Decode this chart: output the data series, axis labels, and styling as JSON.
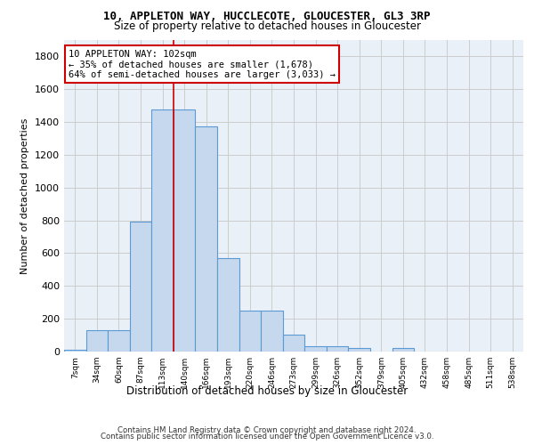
{
  "title1": "10, APPLETON WAY, HUCCLECOTE, GLOUCESTER, GL3 3RP",
  "title2": "Size of property relative to detached houses in Gloucester",
  "xlabel": "Distribution of detached houses by size in Gloucester",
  "ylabel": "Number of detached properties",
  "bar_labels": [
    "7sqm",
    "34sqm",
    "60sqm",
    "87sqm",
    "113sqm",
    "140sqm",
    "166sqm",
    "193sqm",
    "220sqm",
    "246sqm",
    "273sqm",
    "299sqm",
    "326sqm",
    "352sqm",
    "379sqm",
    "405sqm",
    "432sqm",
    "458sqm",
    "485sqm",
    "511sqm",
    "538sqm"
  ],
  "bar_values": [
    10,
    130,
    130,
    790,
    1475,
    1475,
    1375,
    570,
    250,
    250,
    105,
    35,
    30,
    20,
    0,
    20,
    0,
    0,
    0,
    0,
    0
  ],
  "bar_color": "#c5d8ed",
  "bar_edge_color": "#5b9bd5",
  "annotation_line1": "10 APPLETON WAY: 102sqm",
  "annotation_line2": "← 35% of detached houses are smaller (1,678)",
  "annotation_line3": "64% of semi-detached houses are larger (3,033) →",
  "annotation_box_color": "#ffffff",
  "annotation_box_edge_color": "#cc0000",
  "vline_x": 4.5,
  "ylim": [
    0,
    1900
  ],
  "yticks": [
    0,
    200,
    400,
    600,
    800,
    1000,
    1200,
    1400,
    1600,
    1800
  ],
  "grid_color": "#cccccc",
  "bg_color": "#eaf0f8",
  "footer1": "Contains HM Land Registry data © Crown copyright and database right 2024.",
  "footer2": "Contains public sector information licensed under the Open Government Licence v3.0."
}
